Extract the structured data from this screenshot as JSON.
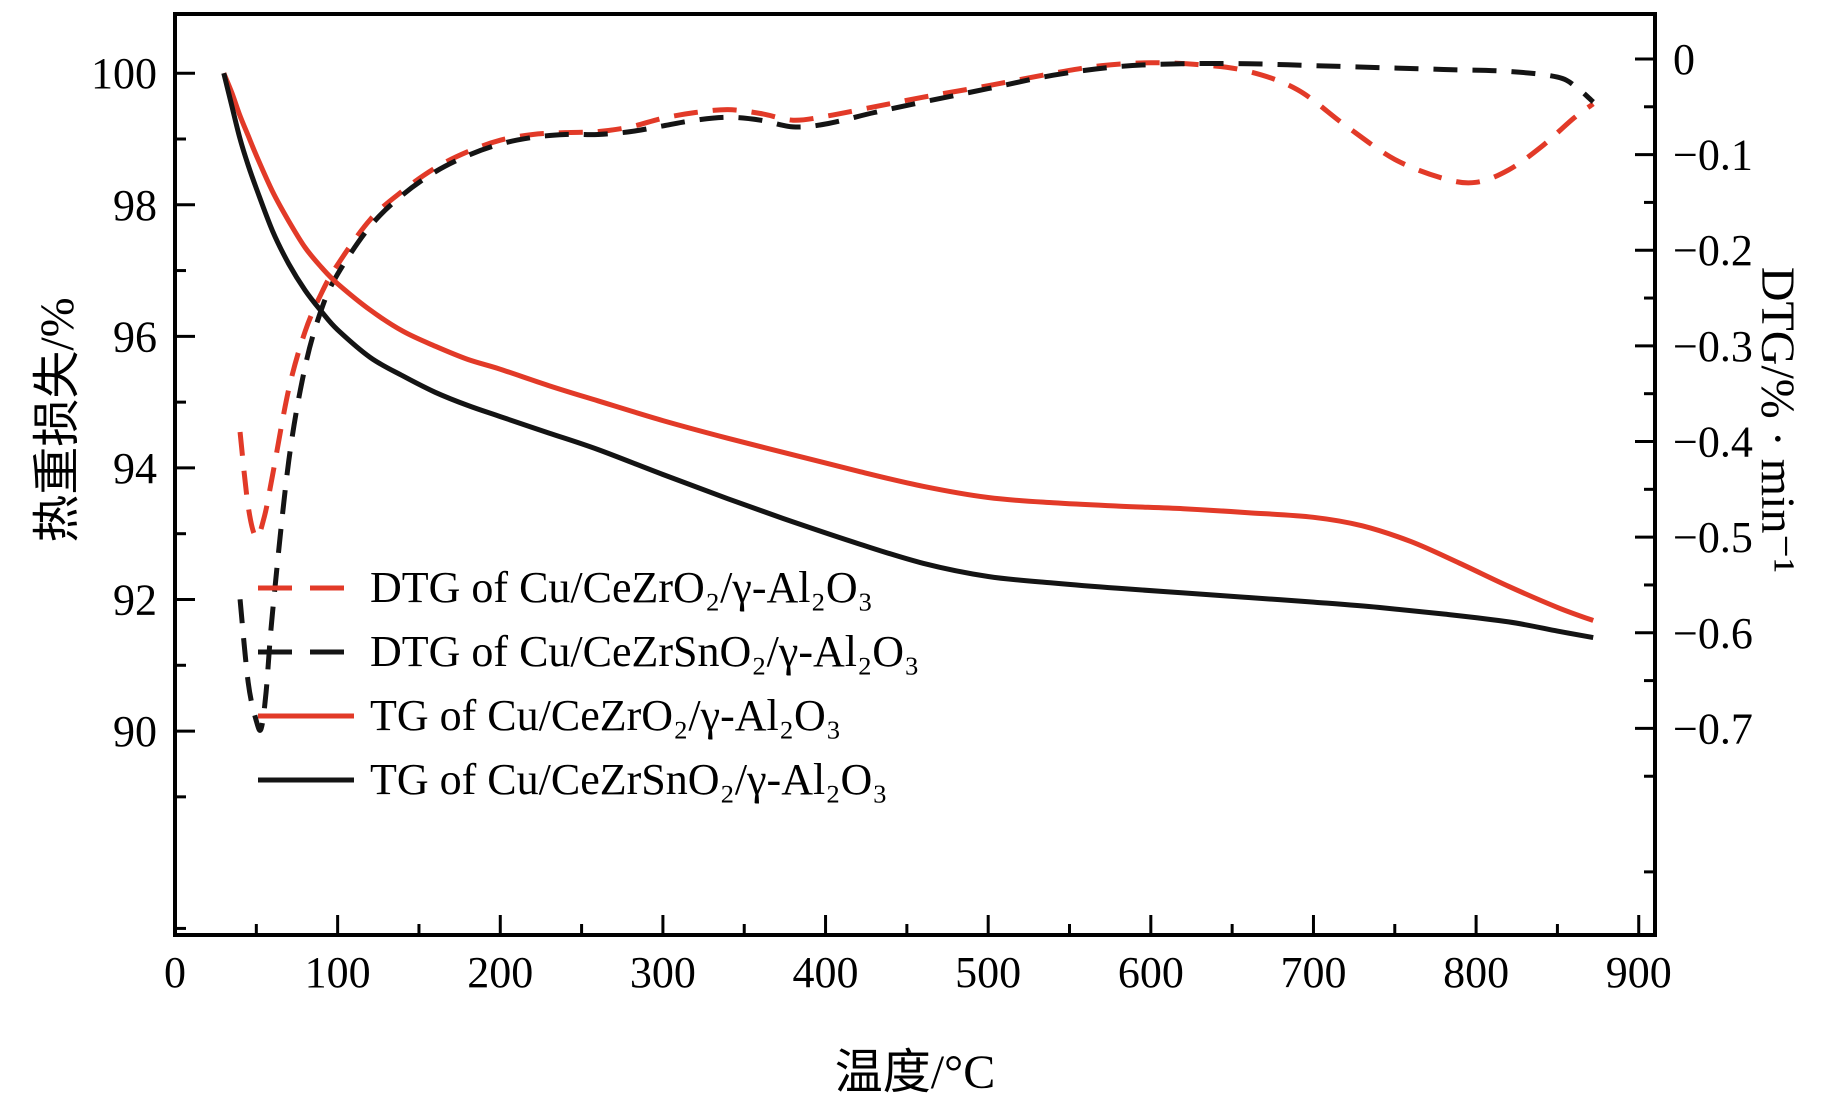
{
  "chart_data": {
    "type": "line",
    "title": "",
    "xlabel": "温度/°C",
    "ylabel_left": "热重损失/%",
    "ylabel_right": "DTG/% · min⁻¹",
    "x_range": [
      0,
      910
    ],
    "y_left_range": [
      86.9,
      100.9
    ],
    "y_right_range": [
      -0.916,
      0.047
    ],
    "grid": false,
    "legend_position": "lower-left-inside",
    "x_ticks": {
      "values": [
        0,
        100,
        200,
        300,
        400,
        500,
        600,
        700,
        800,
        900
      ],
      "labels": [
        "0",
        "100",
        "200",
        "300",
        "400",
        "500",
        "600",
        "700",
        "800",
        "900"
      ],
      "minor": [
        50,
        150,
        250,
        350,
        450,
        550,
        650,
        750,
        850
      ]
    },
    "y_left_ticks": {
      "values": [
        90,
        92,
        94,
        96,
        98,
        100
      ],
      "labels": [
        "90",
        "92",
        "94",
        "96",
        "98",
        "100"
      ],
      "minor": [
        87,
        89,
        91,
        93,
        95,
        97,
        99
      ]
    },
    "y_right_ticks": {
      "values": [
        0,
        -0.1,
        -0.2,
        -0.3,
        -0.4,
        -0.5,
        -0.6,
        -0.7
      ],
      "labels": [
        "0",
        "−0.1",
        "−0.2",
        "−0.3",
        "−0.4",
        "−0.5",
        "−0.6",
        "−0.7"
      ],
      "minor": [
        -0.05,
        -0.15,
        -0.25,
        -0.35,
        -0.45,
        -0.55,
        -0.65,
        -0.75,
        -0.85
      ]
    },
    "colors": {
      "red": "#e23a28",
      "black": "#141414"
    },
    "series": [
      {
        "label": "DTG of Cu/CeZrO₂/γ-Al₂O₃",
        "color": "red",
        "dashed": true,
        "axis": "right",
        "points": [
          [
            40,
            -0.39
          ],
          [
            45,
            -0.468
          ],
          [
            50,
            -0.5
          ],
          [
            55,
            -0.478
          ],
          [
            60,
            -0.435
          ],
          [
            70,
            -0.345
          ],
          [
            80,
            -0.285
          ],
          [
            90,
            -0.245
          ],
          [
            100,
            -0.215
          ],
          [
            120,
            -0.168
          ],
          [
            140,
            -0.138
          ],
          [
            160,
            -0.114
          ],
          [
            180,
            -0.097
          ],
          [
            200,
            -0.085
          ],
          [
            220,
            -0.079
          ],
          [
            240,
            -0.077
          ],
          [
            260,
            -0.076
          ],
          [
            280,
            -0.071
          ],
          [
            300,
            -0.062
          ],
          [
            320,
            -0.056
          ],
          [
            340,
            -0.053
          ],
          [
            360,
            -0.057
          ],
          [
            380,
            -0.064
          ],
          [
            400,
            -0.06
          ],
          [
            430,
            -0.05
          ],
          [
            460,
            -0.04
          ],
          [
            500,
            -0.028
          ],
          [
            540,
            -0.015
          ],
          [
            570,
            -0.007
          ],
          [
            600,
            -0.004
          ],
          [
            630,
            -0.006
          ],
          [
            660,
            -0.013
          ],
          [
            690,
            -0.032
          ],
          [
            720,
            -0.07
          ],
          [
            750,
            -0.105
          ],
          [
            780,
            -0.125
          ],
          [
            800,
            -0.129
          ],
          [
            820,
            -0.116
          ],
          [
            840,
            -0.092
          ],
          [
            860,
            -0.062
          ],
          [
            872,
            -0.047
          ]
        ]
      },
      {
        "label": "DTG of Cu/CeZrSnO₂/γ-Al₂O₃",
        "color": "black",
        "dashed": true,
        "axis": "right",
        "points": [
          [
            40,
            -0.565
          ],
          [
            45,
            -0.652
          ],
          [
            50,
            -0.692
          ],
          [
            53,
            -0.7
          ],
          [
            56,
            -0.662
          ],
          [
            60,
            -0.578
          ],
          [
            70,
            -0.42
          ],
          [
            80,
            -0.322
          ],
          [
            90,
            -0.262
          ],
          [
            100,
            -0.225
          ],
          [
            120,
            -0.175
          ],
          [
            140,
            -0.142
          ],
          [
            160,
            -0.118
          ],
          [
            180,
            -0.101
          ],
          [
            200,
            -0.089
          ],
          [
            220,
            -0.082
          ],
          [
            240,
            -0.079
          ],
          [
            260,
            -0.079
          ],
          [
            280,
            -0.076
          ],
          [
            300,
            -0.07
          ],
          [
            320,
            -0.064
          ],
          [
            340,
            -0.061
          ],
          [
            360,
            -0.064
          ],
          [
            380,
            -0.071
          ],
          [
            400,
            -0.068
          ],
          [
            430,
            -0.056
          ],
          [
            460,
            -0.045
          ],
          [
            500,
            -0.031
          ],
          [
            540,
            -0.017
          ],
          [
            580,
            -0.008
          ],
          [
            620,
            -0.005
          ],
          [
            660,
            -0.005
          ],
          [
            700,
            -0.007
          ],
          [
            740,
            -0.009
          ],
          [
            780,
            -0.011
          ],
          [
            820,
            -0.013
          ],
          [
            850,
            -0.019
          ],
          [
            862,
            -0.03
          ],
          [
            872,
            -0.045
          ]
        ]
      },
      {
        "label": "TG of Cu/CeZrO₂/γ-Al₂O₃",
        "color": "red",
        "dashed": false,
        "axis": "left",
        "points": [
          [
            30,
            100
          ],
          [
            35,
            99.7
          ],
          [
            40,
            99.35
          ],
          [
            45,
            99.05
          ],
          [
            50,
            98.75
          ],
          [
            60,
            98.2
          ],
          [
            70,
            97.75
          ],
          [
            80,
            97.35
          ],
          [
            90,
            97.05
          ],
          [
            100,
            96.8
          ],
          [
            120,
            96.4
          ],
          [
            140,
            96.08
          ],
          [
            160,
            95.85
          ],
          [
            180,
            95.65
          ],
          [
            200,
            95.5
          ],
          [
            230,
            95.25
          ],
          [
            260,
            95.02
          ],
          [
            300,
            94.72
          ],
          [
            340,
            94.45
          ],
          [
            380,
            94.2
          ],
          [
            420,
            93.95
          ],
          [
            460,
            93.72
          ],
          [
            500,
            93.55
          ],
          [
            540,
            93.47
          ],
          [
            580,
            93.42
          ],
          [
            620,
            93.38
          ],
          [
            660,
            93.32
          ],
          [
            700,
            93.25
          ],
          [
            730,
            93.12
          ],
          [
            760,
            92.88
          ],
          [
            790,
            92.55
          ],
          [
            820,
            92.2
          ],
          [
            850,
            91.88
          ],
          [
            872,
            91.68
          ]
        ]
      },
      {
        "label": "TG of Cu/CeZrSnO₂/γ-Al₂O₃",
        "color": "black",
        "dashed": false,
        "axis": "left",
        "points": [
          [
            30,
            100
          ],
          [
            35,
            99.5
          ],
          [
            40,
            99.0
          ],
          [
            45,
            98.6
          ],
          [
            50,
            98.25
          ],
          [
            60,
            97.6
          ],
          [
            70,
            97.1
          ],
          [
            80,
            96.7
          ],
          [
            90,
            96.38
          ],
          [
            100,
            96.1
          ],
          [
            120,
            95.68
          ],
          [
            140,
            95.4
          ],
          [
            160,
            95.15
          ],
          [
            180,
            94.95
          ],
          [
            200,
            94.78
          ],
          [
            230,
            94.53
          ],
          [
            260,
            94.28
          ],
          [
            300,
            93.9
          ],
          [
            340,
            93.53
          ],
          [
            380,
            93.18
          ],
          [
            420,
            92.85
          ],
          [
            460,
            92.55
          ],
          [
            500,
            92.35
          ],
          [
            540,
            92.25
          ],
          [
            580,
            92.17
          ],
          [
            620,
            92.1
          ],
          [
            660,
            92.03
          ],
          [
            700,
            91.96
          ],
          [
            740,
            91.88
          ],
          [
            780,
            91.78
          ],
          [
            820,
            91.66
          ],
          [
            850,
            91.52
          ],
          [
            872,
            91.42
          ]
        ]
      }
    ]
  }
}
